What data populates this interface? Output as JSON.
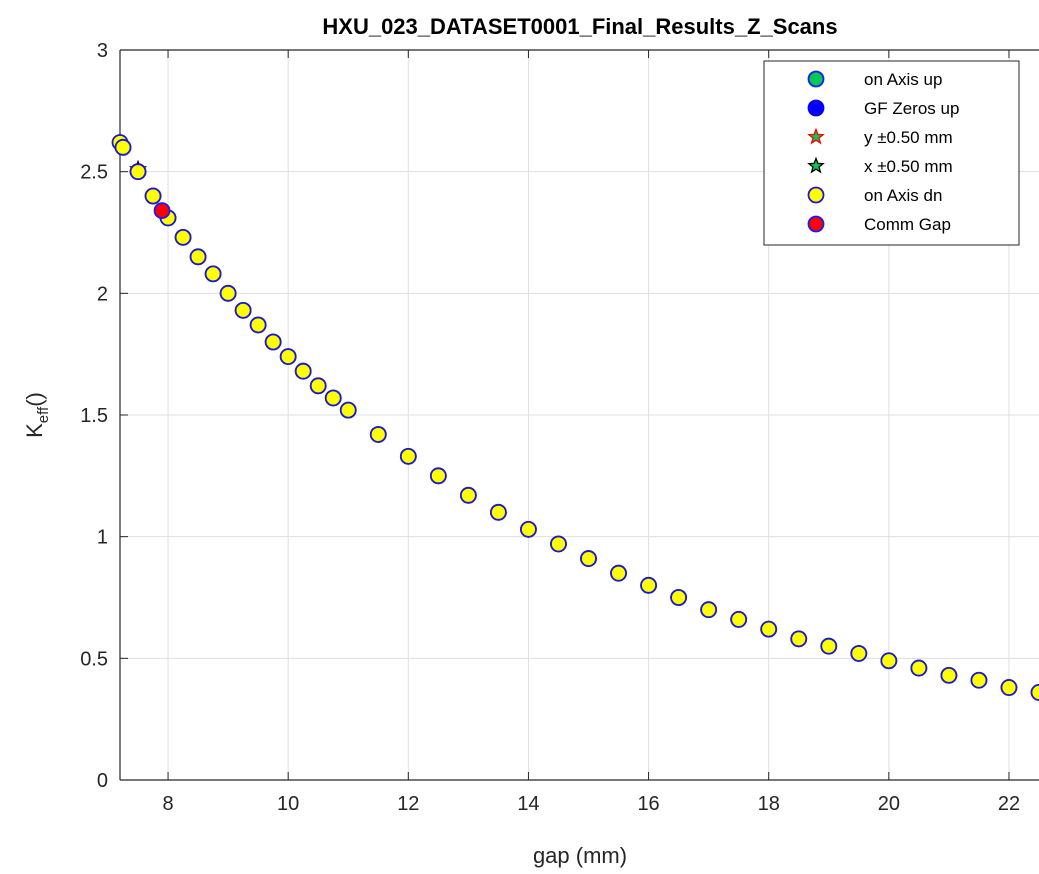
{
  "chart_data": {
    "type": "scatter",
    "title": "HXU_023_DATASET0001_Final_Results_Z_Scans",
    "xlabel": "gap (mm)",
    "ylabel_main": "K",
    "ylabel_sub": "eff",
    "ylabel_tail": "()",
    "xlim": [
      7.2,
      22.5
    ],
    "ylim": [
      0,
      3
    ],
    "xticks": [
      8,
      10,
      12,
      14,
      16,
      18,
      20,
      22
    ],
    "yticks": [
      0,
      0.5,
      1,
      1.5,
      2,
      2.5,
      3
    ],
    "ytick_labels": [
      "0",
      "0.5",
      "1",
      "1.5",
      "2",
      "2.5",
      "3"
    ],
    "grid": true,
    "legend_position": "top-right",
    "series": [
      {
        "name": "on Axis up",
        "marker": "circle",
        "fill": "#00c853",
        "edge": "#1a1aff",
        "x": [
          7.25,
          7.5,
          7.75,
          8.0,
          8.25,
          8.5,
          8.75,
          9.0,
          9.25,
          9.5,
          9.75,
          10.0,
          10.25,
          10.5,
          10.75,
          11.0,
          11.5,
          12.0,
          12.5,
          13.0,
          13.5,
          14.0,
          14.5,
          15.0,
          15.5,
          16.0,
          16.5,
          17.0,
          17.5,
          18.0,
          18.5,
          19.0,
          19.5,
          20.0,
          20.5,
          21.0,
          21.5,
          22.0,
          22.5
        ],
        "y": [
          2.6,
          2.5,
          2.4,
          2.31,
          2.23,
          2.15,
          2.08,
          2.0,
          1.93,
          1.87,
          1.8,
          1.74,
          1.68,
          1.62,
          1.57,
          1.52,
          1.42,
          1.33,
          1.25,
          1.17,
          1.1,
          1.03,
          0.97,
          0.91,
          0.85,
          0.8,
          0.75,
          0.7,
          0.66,
          0.62,
          0.58,
          0.55,
          0.52,
          0.49,
          0.46,
          0.43,
          0.41,
          0.38,
          0.36
        ]
      },
      {
        "name": "GF Zeros up",
        "marker": "circle",
        "fill": "#0000ff",
        "edge": "#0000ff",
        "x": [],
        "y": []
      },
      {
        "name": "y ±0.50 mm",
        "marker": "star",
        "fill": "#00c853",
        "edge": "#ff0000",
        "x": [
          7.5
        ],
        "y": [
          2.51
        ]
      },
      {
        "name": "x ±0.50 mm",
        "marker": "star",
        "fill": "#00c853",
        "edge": "#000000",
        "x": [
          7.5
        ],
        "y": [
          2.51
        ]
      },
      {
        "name": "on Axis dn",
        "marker": "circle",
        "fill": "#ffff00",
        "edge": "#1a1acc",
        "x": [
          7.2,
          7.25,
          7.5,
          7.75,
          8.0,
          8.25,
          8.5,
          8.75,
          9.0,
          9.25,
          9.5,
          9.75,
          10.0,
          10.25,
          10.5,
          10.75,
          11.0,
          11.5,
          12.0,
          12.5,
          13.0,
          13.5,
          14.0,
          14.5,
          15.0,
          15.5,
          16.0,
          16.5,
          17.0,
          17.5,
          18.0,
          18.5,
          19.0,
          19.5,
          20.0,
          20.5,
          21.0,
          21.5,
          22.0,
          22.5
        ],
        "y": [
          2.62,
          2.6,
          2.5,
          2.4,
          2.31,
          2.23,
          2.15,
          2.08,
          2.0,
          1.93,
          1.87,
          1.8,
          1.74,
          1.68,
          1.62,
          1.57,
          1.52,
          1.42,
          1.33,
          1.25,
          1.17,
          1.1,
          1.03,
          0.97,
          0.91,
          0.85,
          0.8,
          0.75,
          0.7,
          0.66,
          0.62,
          0.58,
          0.55,
          0.52,
          0.49,
          0.46,
          0.43,
          0.41,
          0.38,
          0.36
        ]
      },
      {
        "name": "Comm Gap",
        "marker": "circle",
        "fill": "#ff0000",
        "edge": "#1a1aff",
        "x": [
          7.9
        ],
        "y": [
          2.34
        ]
      }
    ]
  }
}
